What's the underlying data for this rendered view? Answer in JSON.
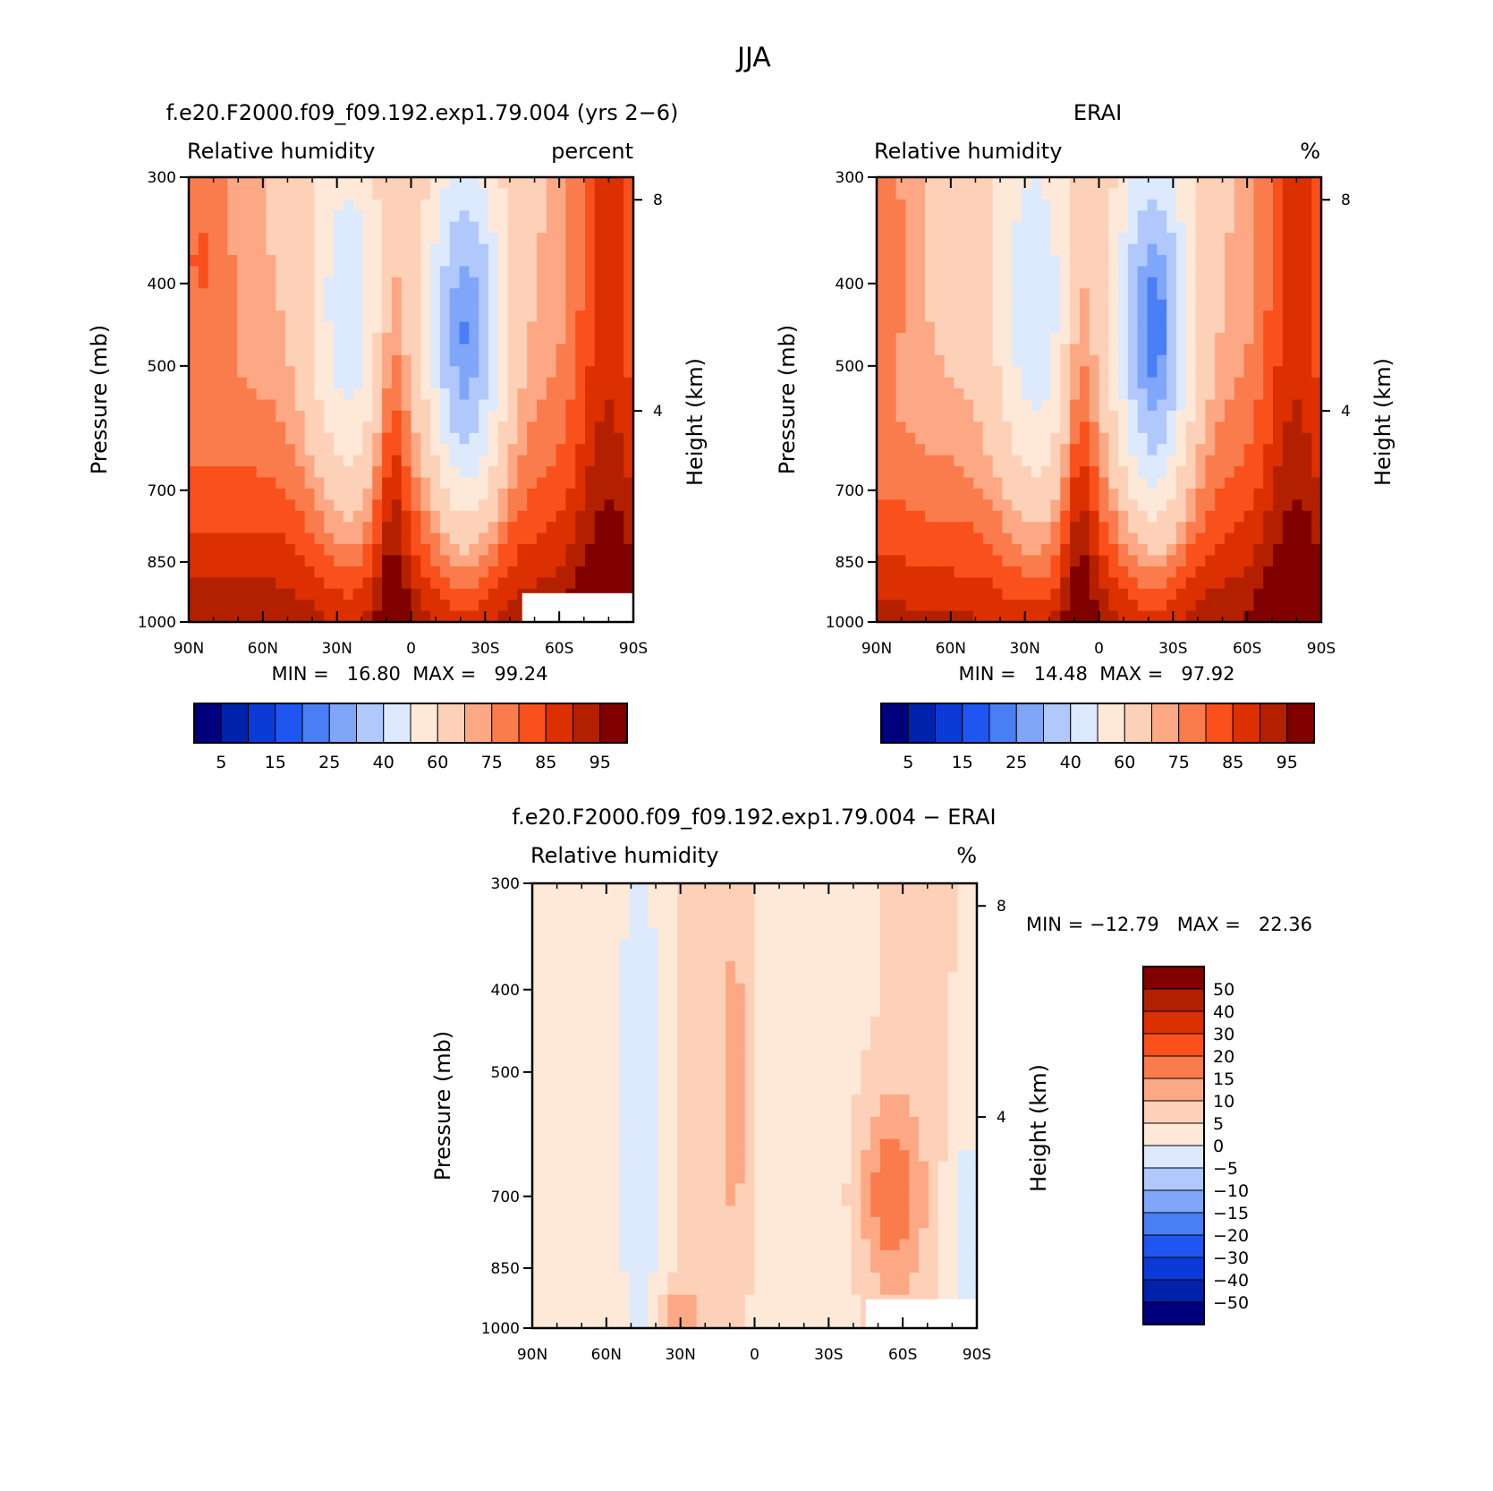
{
  "figure": {
    "title": "JJA",
    "colors": {
      "rh_levels": [
        "#00007f",
        "#0022aa",
        "#0b3ad6",
        "#1f55f0",
        "#4a7ef5",
        "#7fa6f8",
        "#b0c8fb",
        "#dde9fd",
        "#fee8d8",
        "#fdd0b8",
        "#fca884",
        "#fa7c4c",
        "#f9501c",
        "#dc3000",
        "#b32000",
        "#800000"
      ],
      "diff_levels": [
        "#00007f",
        "#0022aa",
        "#0b3ad6",
        "#1f55f0",
        "#4a7ef5",
        "#7fa6f8",
        "#b0c8fb",
        "#dde9fd",
        "#fee8d8",
        "#fdd0b8",
        "#fca884",
        "#fa7c4c",
        "#f9501c",
        "#dc3000",
        "#b32000",
        "#800000"
      ]
    }
  },
  "panels": {
    "model": {
      "title": "f.e20.F2000.f09_f09.192.exp1.79.004 (yrs 2−6)",
      "left_label": "Relative humidity",
      "right_label": "percent",
      "min_max": "MIN =   16.80  MAX =   99.24"
    },
    "obs": {
      "title": "ERAI",
      "left_label": "Relative humidity",
      "right_label": "%",
      "min_max": "MIN =   14.48  MAX =   97.92"
    },
    "diff": {
      "title": "f.e20.F2000.f09_f09.192.exp1.79.004 − ERAI",
      "left_label": "Relative humidity",
      "right_label": "%",
      "min_max": "MIN = −12.79   MAX =   22.36"
    }
  },
  "chart_data": [
    {
      "type": "heatmap",
      "title": "f.e20.F2000.f09_f09.192.exp1.79.004 (yrs 2−6)",
      "subtitle": "Relative humidity",
      "units": "percent",
      "ylabel": "Pressure (mb)",
      "ylabel_right": "Height (km)",
      "x_ticks": [
        "90N",
        "60N",
        "30N",
        "0",
        "30S",
        "60S",
        "90S"
      ],
      "y_ticks": [
        "300",
        "400",
        "500",
        "700",
        "850",
        "1000"
      ],
      "y_ticks_right": [
        "8",
        "4"
      ],
      "y_scale": "log",
      "ylim": [
        1000,
        300
      ],
      "contour_levels": [
        5,
        10,
        15,
        20,
        25,
        30,
        40,
        50,
        60,
        70,
        75,
        80,
        85,
        90,
        95
      ],
      "colorbar_labels": [
        "5",
        "15",
        "25",
        "40",
        "60",
        "75",
        "85",
        "95"
      ],
      "min": 16.8,
      "max": 99.24
    },
    {
      "type": "heatmap",
      "title": "ERAI",
      "subtitle": "Relative humidity",
      "units": "%",
      "ylabel": "Pressure (mb)",
      "ylabel_right": "Height (km)",
      "x_ticks": [
        "90N",
        "60N",
        "30N",
        "0",
        "30S",
        "60S",
        "90S"
      ],
      "y_ticks": [
        "300",
        "400",
        "500",
        "700",
        "850",
        "1000"
      ],
      "y_ticks_right": [
        "8",
        "4"
      ],
      "y_scale": "log",
      "ylim": [
        1000,
        300
      ],
      "contour_levels": [
        5,
        10,
        15,
        20,
        25,
        30,
        40,
        50,
        60,
        70,
        75,
        80,
        85,
        90,
        95
      ],
      "colorbar_labels": [
        "5",
        "15",
        "25",
        "40",
        "60",
        "75",
        "85",
        "95"
      ],
      "min": 14.48,
      "max": 97.92
    },
    {
      "type": "heatmap",
      "title": "f.e20.F2000.f09_f09.192.exp1.79.004 − ERAI",
      "subtitle": "Relative humidity",
      "units": "%",
      "ylabel": "Pressure (mb)",
      "ylabel_right": "Height (km)",
      "x_ticks": [
        "90N",
        "60N",
        "30N",
        "0",
        "30S",
        "60S",
        "90S"
      ],
      "y_ticks": [
        "300",
        "400",
        "500",
        "700",
        "850",
        "1000"
      ],
      "y_ticks_right": [
        "8",
        "4"
      ],
      "y_scale": "log",
      "ylim": [
        1000,
        300
      ],
      "contour_levels": [
        -50,
        -40,
        -30,
        -20,
        -15,
        -10,
        -5,
        0,
        5,
        10,
        15,
        20,
        30,
        40,
        50
      ],
      "colorbar_labels": [
        "50",
        "40",
        "30",
        "20",
        "15",
        "10",
        "5",
        "0",
        "−5",
        "−10",
        "−15",
        "−20",
        "−30",
        "−40",
        "−50"
      ],
      "min": -12.79,
      "max": 22.36
    }
  ]
}
